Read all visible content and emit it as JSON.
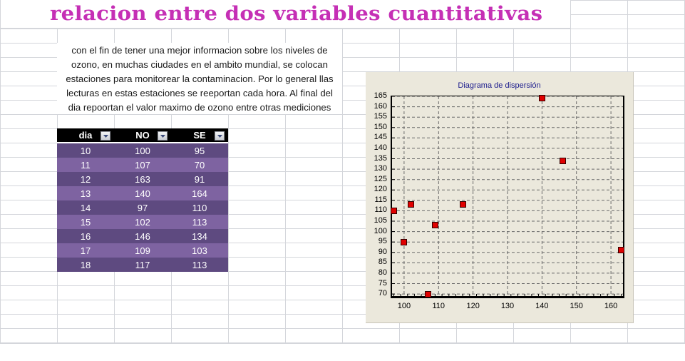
{
  "title": "relacion entre dos variables cuantitativas",
  "description": {
    "lines": [
      "con el fin de tener una mejor informacion sobre los niveles de",
      "ozono, en muchas ciudades en el ambito mundial, se colocan",
      "estaciones para monitorear la contaminacion. Por lo general llas",
      "lecturas en estas estaciones se reeportan cada hora. Al final del",
      "dia repoortan el valor maximo de ozono entre otras mediciones"
    ]
  },
  "table": {
    "headers": [
      "dia",
      "NO",
      "SE"
    ],
    "filter_icon": "dropdown-arrow-icon",
    "rows": [
      [
        "10",
        "100",
        "95"
      ],
      [
        "11",
        "107",
        "70"
      ],
      [
        "12",
        "163",
        "91"
      ],
      [
        "13",
        "140",
        "164"
      ],
      [
        "14",
        "97",
        "110"
      ],
      [
        "15",
        "102",
        "113"
      ],
      [
        "16",
        "146",
        "134"
      ],
      [
        "17",
        "109",
        "103"
      ],
      [
        "18",
        "117",
        "113"
      ]
    ],
    "colors": {
      "header": "#000000",
      "row_dark": "#5e4a80",
      "row_light": "#7e63a1"
    }
  },
  "chart": {
    "title": "Diagrama de dispersión",
    "y_ticks": [
      "165",
      "160",
      "155",
      "150",
      "145",
      "140",
      "135",
      "130",
      "125",
      "120",
      "115",
      "110",
      "105",
      "100",
      "95",
      "90",
      "85",
      "80",
      "75",
      "70"
    ],
    "x_ticks": [
      "100",
      "110",
      "120",
      "130",
      "140",
      "150",
      "160"
    ],
    "marker_color": "#e00000",
    "background": "#ebe8dc"
  },
  "chart_data": {
    "type": "scatter",
    "title": "Diagrama de dispersión",
    "xlabel": "",
    "ylabel": "",
    "x": [
      100,
      107,
      163,
      140,
      97,
      102,
      146,
      109,
      117
    ],
    "y": [
      95,
      70,
      91,
      164,
      110,
      113,
      134,
      103,
      113
    ],
    "xlim": [
      96.5,
      163.5
    ],
    "ylim": [
      69,
      165
    ],
    "x_ticks": [
      100,
      110,
      120,
      130,
      140,
      150,
      160
    ],
    "y_ticks": [
      70,
      75,
      80,
      85,
      90,
      95,
      100,
      105,
      110,
      115,
      120,
      125,
      130,
      135,
      140,
      145,
      150,
      155,
      160,
      165
    ],
    "grid": true,
    "legend": "none",
    "marker": "square"
  }
}
